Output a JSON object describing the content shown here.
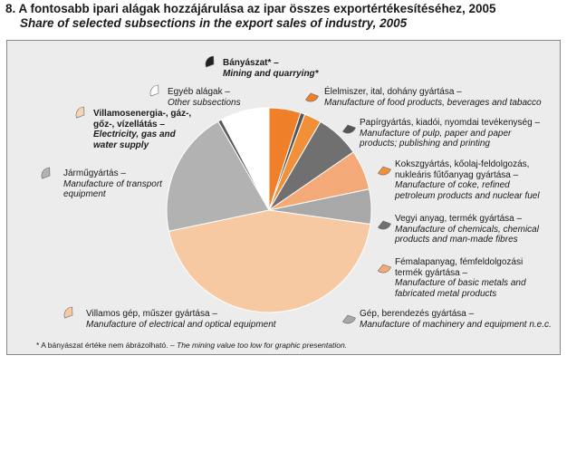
{
  "title": "8. A fontosabb ipari alágak hozzájárulása az ipar összes exportértékesítéséhez, 2005",
  "subtitle": "Share of selected subsections in the export sales of industry, 2005",
  "note": {
    "hu": "* A bányászat értéke nem ábrázolható. –",
    "en": "The mining value too low for graphic presentation."
  },
  "chart_data": {
    "type": "pie",
    "slices": [
      {
        "hu": "Bányászat* –",
        "en": "Mining and quarrying*",
        "value": 0.0,
        "color": "#222222"
      },
      {
        "hu": "Élelmiszer, ital, dohány gyártása –",
        "en": "Manufacture of food products, beverages and tabacco",
        "value": 5.0,
        "color": "#f07f2a"
      },
      {
        "hu": "",
        "en": "",
        "value": 0.7,
        "color": "#555555"
      },
      {
        "hu": "",
        "en": "",
        "value": 2.7,
        "color": "#f2903a"
      },
      {
        "hu": "Papírgyártás, kiadói, nyomdai tevékenység –",
        "en": "Manufacture of pulp, paper and paper products; publishing and printing",
        "value": 7.0,
        "color": "#707070"
      },
      {
        "hu": "Kokszgyártás, kőolaj-feldolgozás, nukleáris fűtőanyag gyártása –",
        "en": "Manufacture of coke, refined petroleum products and nuclear fuel",
        "value": 6.3,
        "color": "#f4a978"
      },
      {
        "hu": "Vegyi anyag, termék gyártása –",
        "en": "Manufacture of chemicals, chemical products and man-made fibres",
        "value": 5.5,
        "color": "#a8a8a8"
      },
      {
        "hu": "Gép, berendezés gyártása –",
        "en": "Manufacture of machinery and equipment n.e.c.",
        "value": 44.5,
        "color": "#f7c9a3"
      },
      {
        "hu": "Járműgyártás –",
        "en": "Manufacture of transport equipment",
        "value": 20.0,
        "color": "#b2b2b2"
      },
      {
        "hu": "",
        "en": "",
        "value": 0.6,
        "color": "#5a5a5a"
      },
      {
        "hu": "Egyéb alágak –",
        "en": "Other subsections",
        "value": 7.7,
        "color": "#ffffff"
      }
    ],
    "label_entries": [
      {
        "hu": "Bányászat* –",
        "en": "Mining and quarrying*",
        "color": "#222222",
        "bold": true
      },
      {
        "hu": "Egyéb alágak –",
        "en": "Other subsections",
        "color": "#ffffff",
        "bold": false
      },
      {
        "hu": "Villamosenergia-, gáz-, gőz-, vízellátás –",
        "en": "Electricity, gas and water supply",
        "color": "#f7d3b6",
        "bold": true
      },
      {
        "hu": "Járműgyártás –",
        "en": "Manufacture of transport equipment",
        "color": "#b2b2b2",
        "bold": false
      },
      {
        "hu": "Villamos gép, műszer gyártása –",
        "en": "Manufacture of electrical and optical equipment",
        "color": "#f7c9a3",
        "bold": false
      },
      {
        "hu": "Élelmiszer, ital, dohány gyártása –",
        "en": "Manufacture of food products, beverages and tabacco",
        "color": "#f07f2a",
        "bold": false
      },
      {
        "hu": "Papírgyártás, kiadói, nyomdai tevékenység –",
        "en": "Manufacture of pulp, paper and paper products; publishing and printing",
        "color": "#555555",
        "bold": false
      },
      {
        "hu": "Kokszgyártás, kőolaj-feldolgozás, nukleáris fűtőanyag gyártása –",
        "en": "Manufacture of coke, refined petroleum products and nuclear fuel",
        "color": "#f2903a",
        "bold": false
      },
      {
        "hu": "Vegyi anyag, termék gyártása –",
        "en": "Manufacture of chemicals, chemical products and man-made fibres",
        "color": "#707070",
        "bold": false
      },
      {
        "hu": "Fémalapanyag, fémfeldolgozási termék gyártása –",
        "en": "Manufacture of basic metals and fabricated metal products",
        "color": "#f4a978",
        "bold": false
      },
      {
        "hu": "Gép, berendezés gyártása –",
        "en": "Manufacture of machinery and equipment n.e.c.",
        "color": "#a8a8a8",
        "bold": false
      }
    ]
  }
}
